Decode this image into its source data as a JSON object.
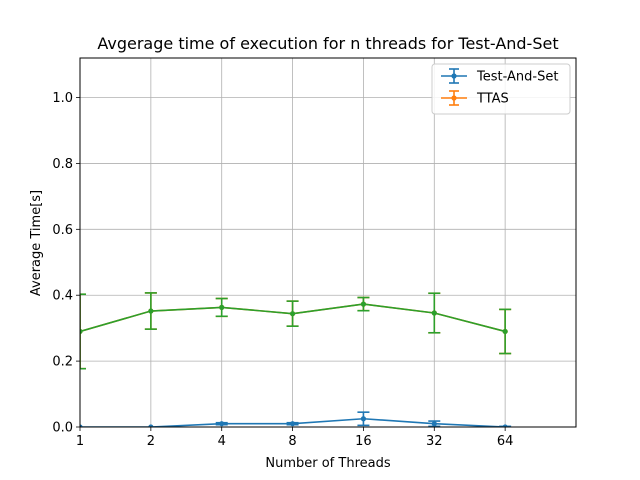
{
  "chart_data": {
    "type": "line",
    "title": "Avgerage time of execution for n threads for Test-And-Set",
    "xlabel": "Number of Threads",
    "ylabel": "Average Time[s]",
    "x_ticks": [
      "1",
      "2",
      "4",
      "8",
      "16",
      "32",
      "64"
    ],
    "y_ticks": [
      "0.0",
      "0.2",
      "0.4",
      "0.6",
      "0.8",
      "1.0"
    ],
    "xlim": [
      1,
      8
    ],
    "ylim": [
      0,
      1.12
    ],
    "grid": true,
    "legend_position": "top-right",
    "x": [
      1,
      2,
      3,
      4,
      5,
      6,
      7
    ],
    "series": [
      {
        "name": "Test-And-Set",
        "color": "#1f77b4",
        "values": [
          0.0,
          0.0,
          0.01,
          0.01,
          0.025,
          0.01,
          0.0
        ],
        "err": [
          0.0,
          0.0,
          0.003,
          0.003,
          0.02,
          0.008,
          0.002
        ],
        "in_legend": true
      },
      {
        "name": "TTAS",
        "color": "#ff7f0e",
        "values": [
          0.29,
          0.352,
          0.363,
          0.344,
          0.373,
          0.346,
          0.29
        ],
        "err": [
          0.113,
          0.055,
          0.027,
          0.038,
          0.02,
          0.06,
          0.067
        ],
        "in_legend": true
      },
      {
        "name": "",
        "color": "#2ca02c",
        "values": [
          0.29,
          0.352,
          0.363,
          0.344,
          0.373,
          0.346,
          0.29
        ],
        "err": [
          0.113,
          0.055,
          0.027,
          0.038,
          0.02,
          0.06,
          0.067
        ],
        "in_legend": false
      }
    ]
  }
}
